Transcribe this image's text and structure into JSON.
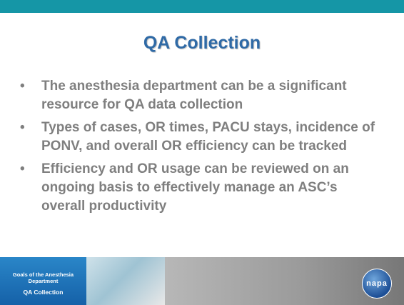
{
  "title": "QA Collection",
  "bullets": [
    "The anesthesia department can be a significant resource for QA data collection",
    "Types of cases, OR times, PACU stays, incidence of PONV, and overall OR efficiency can be tracked",
    "Efficiency and OR usage can be reviewed on an ongoing basis to effectively manage an ASC’s overall productivity"
  ],
  "footer": {
    "section": "Goals of the Anesthesia Department",
    "current": "QA Collection",
    "logo": "napa"
  }
}
